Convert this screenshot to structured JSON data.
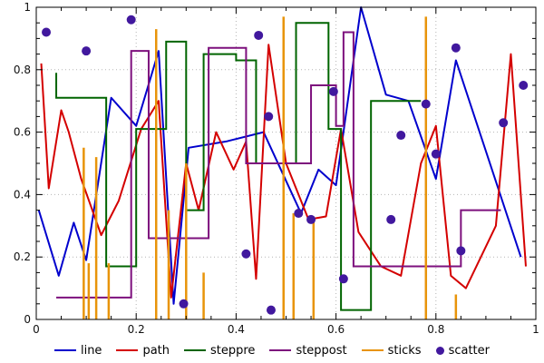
{
  "chart": {
    "background": "#ffffff",
    "grid_color": "#b5b5b5",
    "axis_color": "#000000",
    "tick_label_color": "#111111"
  },
  "chart_data": {
    "type": "line",
    "title": "",
    "xlabel": "",
    "ylabel": "",
    "xlim": [
      0,
      1
    ],
    "ylim": [
      0,
      1
    ],
    "grid": "dotted",
    "legend_position": "bottom-center",
    "minor_tick_step": 0.05,
    "x_ticks": {
      "values": [
        0,
        0.2,
        0.4,
        0.6,
        0.8,
        1
      ],
      "labels": [
        "0",
        "0.2",
        "0.4",
        "0.6",
        "0.8",
        "1"
      ]
    },
    "y_ticks": {
      "values": [
        0,
        0.2,
        0.4,
        0.6,
        0.8,
        1
      ],
      "labels": [
        "0",
        "0.2",
        "0.4",
        "0.6",
        "0.8",
        "1"
      ]
    },
    "series": [
      {
        "name": "line",
        "style": "line",
        "color": "#0000cd",
        "points": [
          [
            0.005,
            0.35
          ],
          [
            0.045,
            0.14
          ],
          [
            0.075,
            0.31
          ],
          [
            0.1,
            0.19
          ],
          [
            0.15,
            0.71
          ],
          [
            0.2,
            0.62
          ],
          [
            0.245,
            0.86
          ],
          [
            0.275,
            0.05
          ],
          [
            0.305,
            0.55
          ],
          [
            0.38,
            0.57
          ],
          [
            0.455,
            0.6
          ],
          [
            0.53,
            0.34
          ],
          [
            0.565,
            0.48
          ],
          [
            0.6,
            0.43
          ],
          [
            0.65,
            1.0
          ],
          [
            0.7,
            0.72
          ],
          [
            0.745,
            0.7
          ],
          [
            0.8,
            0.45
          ],
          [
            0.84,
            0.83
          ],
          [
            0.97,
            0.2
          ]
        ]
      },
      {
        "name": "path",
        "style": "path",
        "color": "#d40000",
        "points": [
          [
            0.01,
            0.82
          ],
          [
            0.025,
            0.42
          ],
          [
            0.05,
            0.67
          ],
          [
            0.065,
            0.6
          ],
          [
            0.09,
            0.45
          ],
          [
            0.13,
            0.27
          ],
          [
            0.165,
            0.38
          ],
          [
            0.21,
            0.61
          ],
          [
            0.245,
            0.7
          ],
          [
            0.27,
            0.07
          ],
          [
            0.3,
            0.5
          ],
          [
            0.325,
            0.35
          ],
          [
            0.36,
            0.6
          ],
          [
            0.395,
            0.48
          ],
          [
            0.42,
            0.57
          ],
          [
            0.44,
            0.13
          ],
          [
            0.465,
            0.88
          ],
          [
            0.5,
            0.5
          ],
          [
            0.545,
            0.32
          ],
          [
            0.58,
            0.33
          ],
          [
            0.61,
            0.61
          ],
          [
            0.645,
            0.28
          ],
          [
            0.69,
            0.17
          ],
          [
            0.73,
            0.14
          ],
          [
            0.77,
            0.5
          ],
          [
            0.8,
            0.62
          ],
          [
            0.83,
            0.14
          ],
          [
            0.86,
            0.1
          ],
          [
            0.92,
            0.3
          ],
          [
            0.95,
            0.85
          ],
          [
            0.98,
            0.17
          ]
        ]
      },
      {
        "name": "steppre",
        "style": "step-pre",
        "color": "#006400",
        "points": [
          [
            0.04,
            0.79
          ],
          [
            0.14,
            0.71
          ],
          [
            0.2,
            0.17
          ],
          [
            0.26,
            0.61
          ],
          [
            0.3,
            0.89
          ],
          [
            0.335,
            0.35
          ],
          [
            0.4,
            0.85
          ],
          [
            0.44,
            0.83
          ],
          [
            0.52,
            0.5
          ],
          [
            0.585,
            0.95
          ],
          [
            0.61,
            0.61
          ],
          [
            0.67,
            0.03
          ],
          [
            0.77,
            0.7
          ]
        ]
      },
      {
        "name": "steppost",
        "style": "step-post",
        "color": "#7d107d",
        "points": [
          [
            0.04,
            0.07
          ],
          [
            0.19,
            0.86
          ],
          [
            0.225,
            0.26
          ],
          [
            0.345,
            0.87
          ],
          [
            0.42,
            0.5
          ],
          [
            0.55,
            0.75
          ],
          [
            0.6,
            0.62
          ],
          [
            0.615,
            0.92
          ],
          [
            0.635,
            0.17
          ],
          [
            0.85,
            0.35
          ],
          [
            0.93,
            0.35
          ]
        ]
      },
      {
        "name": "sticks",
        "style": "sticks",
        "color": "#e8940a",
        "points": [
          [
            0.095,
            0.55
          ],
          [
            0.105,
            0.18
          ],
          [
            0.12,
            0.52
          ],
          [
            0.145,
            0.18
          ],
          [
            0.24,
            0.93
          ],
          [
            0.265,
            0.35
          ],
          [
            0.3,
            0.5
          ],
          [
            0.335,
            0.15
          ],
          [
            0.495,
            0.97
          ],
          [
            0.515,
            0.34
          ],
          [
            0.555,
            0.33
          ],
          [
            0.78,
            0.97
          ],
          [
            0.84,
            0.08
          ]
        ]
      },
      {
        "name": "scatter",
        "style": "scatter",
        "color": "#41189e",
        "points": [
          [
            0.02,
            0.92
          ],
          [
            0.1,
            0.86
          ],
          [
            0.19,
            0.96
          ],
          [
            0.295,
            0.05
          ],
          [
            0.42,
            0.21
          ],
          [
            0.445,
            0.91
          ],
          [
            0.465,
            0.65
          ],
          [
            0.47,
            0.03
          ],
          [
            0.525,
            0.34
          ],
          [
            0.55,
            0.32
          ],
          [
            0.595,
            0.73
          ],
          [
            0.615,
            0.13
          ],
          [
            0.71,
            0.32
          ],
          [
            0.73,
            0.59
          ],
          [
            0.78,
            0.69
          ],
          [
            0.8,
            0.53
          ],
          [
            0.84,
            0.87
          ],
          [
            0.85,
            0.22
          ],
          [
            0.935,
            0.63
          ],
          [
            0.975,
            0.75
          ]
        ]
      }
    ]
  }
}
